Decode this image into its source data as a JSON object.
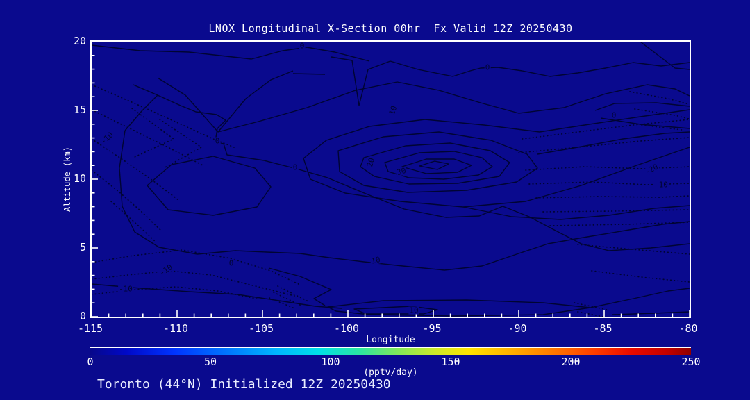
{
  "chart_data": {
    "type": "heatmap",
    "subtype": "contour-cross-section",
    "title": "LNOX Longitudinal X-Section 00hr  Fx Valid 12Z 20250430",
    "xlabel": "Longitude",
    "ylabel": "Altitude (km)",
    "xlim": [
      -115,
      -80
    ],
    "ylim": [
      0,
      20
    ],
    "xticks": [
      -115,
      -110,
      -105,
      -100,
      -95,
      -90,
      -85,
      -80
    ],
    "yticks": [
      0,
      5,
      10,
      15,
      20
    ],
    "minor_tick_step_x": 1,
    "minor_tick_step_y": 1,
    "grid": false,
    "colorbar": {
      "min": 0,
      "max": 250,
      "ticks": [
        0,
        50,
        100,
        150,
        200,
        250
      ],
      "units_label": "(pptv/day)"
    },
    "contour_levels_labeled": [
      -20,
      -10,
      0,
      10,
      20,
      30
    ],
    "negative_contour_style": "dotted",
    "positive_contour_style": "solid",
    "peak": {
      "lon": -95,
      "altitude_km": 11.1,
      "enclosed_by_level": 30
    },
    "negative_center": {
      "lon": -82.5,
      "altitude_km": 10.5,
      "level": -20
    },
    "contour_labels": [
      {
        "level": "0",
        "lon": -102.7,
        "km": 19.7,
        "x": 303,
        "y": 6,
        "rot": 0
      },
      {
        "level": "0",
        "lon": -91.9,
        "km": 18.2,
        "x": 570,
        "y": 37,
        "rot": 0
      },
      {
        "level": "0",
        "lon": -84.6,
        "km": 14.8,
        "x": 752,
        "y": 106,
        "rot": 0
      },
      {
        "level": "10",
        "lon": -97.4,
        "km": 15.1,
        "x": 434,
        "y": 99,
        "rot": -72
      },
      {
        "level": "0",
        "lon": -107.7,
        "km": 12.9,
        "x": 181,
        "y": 143,
        "rot": 0
      },
      {
        "level": "0",
        "lon": -103.1,
        "km": 11.0,
        "x": 293,
        "y": 181,
        "rot": 0
      },
      {
        "level": "-10",
        "lon": -114.1,
        "km": 13.1,
        "x": 22,
        "y": 139,
        "rot": -42
      },
      {
        "level": "20",
        "lon": -98.8,
        "km": 11.3,
        "x": 402,
        "y": 174,
        "rot": -75
      },
      {
        "level": "30",
        "lon": -97.0,
        "km": 10.7,
        "x": 446,
        "y": 187,
        "rot": -18
      },
      {
        "level": "-20",
        "lon": -82.4,
        "km": 10.8,
        "x": 806,
        "y": 184,
        "rot": -28
      },
      {
        "level": "-10",
        "lon": -81.8,
        "km": 9.7,
        "x": 820,
        "y": 206,
        "rot": 0
      },
      {
        "level": "0",
        "lon": -106.9,
        "km": 4.1,
        "x": 201,
        "y": 319,
        "rot": 0
      },
      {
        "level": "-10",
        "lon": -110.7,
        "km": 3.6,
        "x": 107,
        "y": 329,
        "rot": -33
      },
      {
        "level": "-10",
        "lon": -113.1,
        "km": 2.2,
        "x": 49,
        "y": 356,
        "rot": 0
      },
      {
        "level": "10",
        "lon": -98.5,
        "km": 4.3,
        "x": 409,
        "y": 315,
        "rot": -12
      },
      {
        "level": "10",
        "lon": -96.3,
        "km": 0.7,
        "x": 464,
        "y": 387,
        "rot": 0
      }
    ]
  },
  "footer": {
    "annotation": "Toronto (44°N) Initialized 12Z 20250430"
  },
  "colors": {
    "background": "#0a0a8e",
    "contour_line": "#000433",
    "axis_and_text": "#ffffff",
    "annotation_text": "#e9edff",
    "colorbar_stops": [
      {
        "p": 0,
        "c": "#07078a"
      },
      {
        "p": 6,
        "c": "#0009c8"
      },
      {
        "p": 14,
        "c": "#0034ff"
      },
      {
        "p": 23,
        "c": "#0078ff"
      },
      {
        "p": 31,
        "c": "#00b6ff"
      },
      {
        "p": 38,
        "c": "#00e0e8"
      },
      {
        "p": 45,
        "c": "#2de6a0"
      },
      {
        "p": 51,
        "c": "#7fe85c"
      },
      {
        "p": 57,
        "c": "#c9ea2c"
      },
      {
        "p": 63,
        "c": "#ffe400"
      },
      {
        "p": 70,
        "c": "#ffb000"
      },
      {
        "p": 77,
        "c": "#ff7800"
      },
      {
        "p": 84,
        "c": "#ff3c00"
      },
      {
        "p": 90,
        "c": "#ea0a00"
      },
      {
        "p": 96,
        "c": "#c40000"
      },
      {
        "p": 100,
        "c": "#8f0000"
      }
    ]
  }
}
